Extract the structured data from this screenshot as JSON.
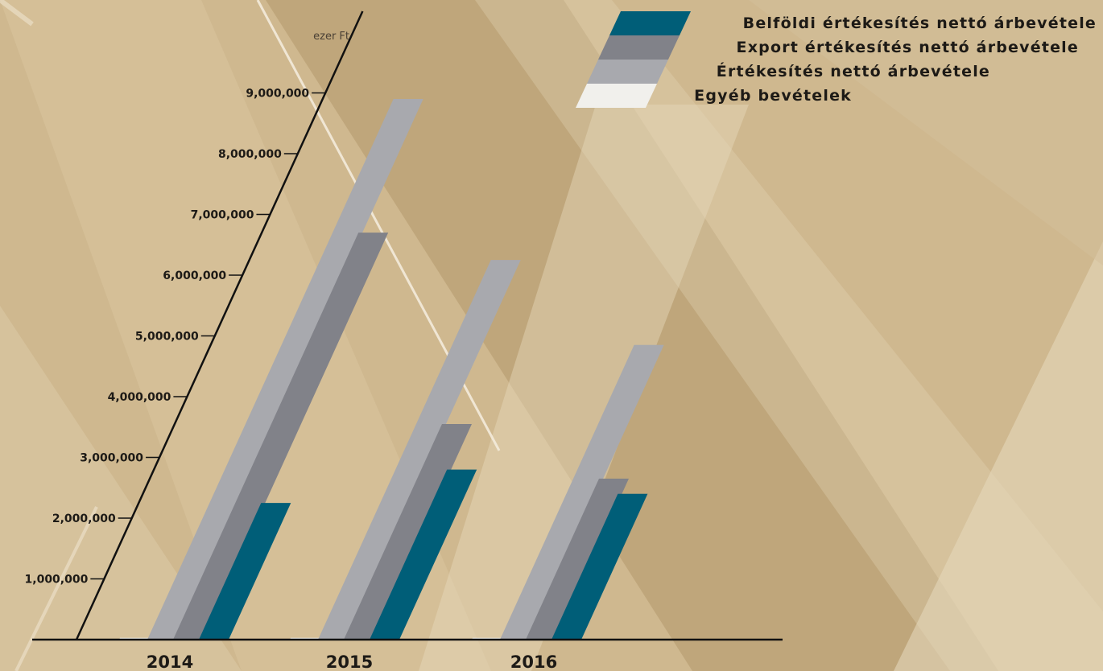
{
  "chart_data": {
    "type": "bar",
    "unit_label": "ezer Ft",
    "categories": [
      "2014",
      "2015",
      "2016"
    ],
    "series": [
      {
        "name": "Belföldi értékesítés nettó árbevétele",
        "color": "#005e78",
        "values": [
          2250000,
          2800000,
          2400000
        ]
      },
      {
        "name": "Export értékesítés nettó árbevétele",
        "color": "#818289",
        "values": [
          6700000,
          3550000,
          2650000
        ]
      },
      {
        "name": "Értékesítés nettó árbevétele",
        "color": "#a8a9ae",
        "values": [
          8900000,
          6250000,
          4850000
        ]
      },
      {
        "name": "Egyéb bevételek",
        "color": "#f1f0ec",
        "values": [
          30000,
          30000,
          30000
        ]
      }
    ],
    "y_ticks": [
      "1,000,000",
      "2,000,000",
      "3,000,000",
      "4,000,000",
      "5,000,000",
      "6,000,000",
      "7,000,000",
      "8,000,000",
      "9,000,000"
    ],
    "y_tick_values": [
      1000000,
      2000000,
      3000000,
      4000000,
      5000000,
      6000000,
      7000000,
      8000000,
      9000000
    ],
    "ylim": [
      0,
      10000000
    ],
    "legend_position": "top-right",
    "grid": false
  }
}
